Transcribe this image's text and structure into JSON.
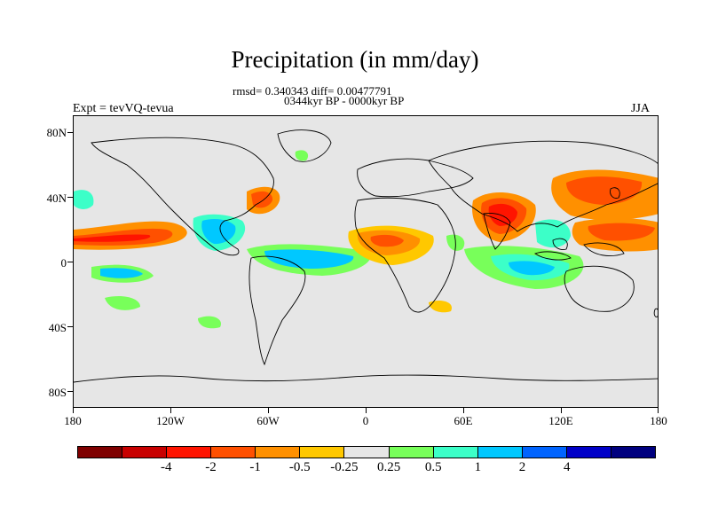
{
  "title": "Precipitation (in mm/day)",
  "stats_line": "rmsd= 0.340343 diff= 0.00477791",
  "period_line": "0344kyr BP - 0000kyr BP",
  "left_label": "Expt = tevVQ-tevua",
  "right_label": "JJA",
  "map": {
    "lat_ticks": [
      "80N",
      "40N",
      "0",
      "40S",
      "80S"
    ],
    "lon_ticks": [
      "180",
      "120W",
      "60W",
      "0",
      "60E",
      "120E",
      "180"
    ],
    "background_color": "#e6e6e6"
  },
  "colorbar": {
    "colors": [
      "#7f0000",
      "#c80000",
      "#ff1400",
      "#ff5000",
      "#ff9000",
      "#ffc800",
      "#e6e6e6",
      "#78ff5a",
      "#3cffc8",
      "#00c8ff",
      "#0064ff",
      "#0000c8",
      "#00007f"
    ],
    "labels": [
      "-4",
      "-2",
      "-1",
      "-0.5",
      "-0.25",
      "0.25",
      "0.5",
      "1",
      "2",
      "4"
    ]
  }
}
